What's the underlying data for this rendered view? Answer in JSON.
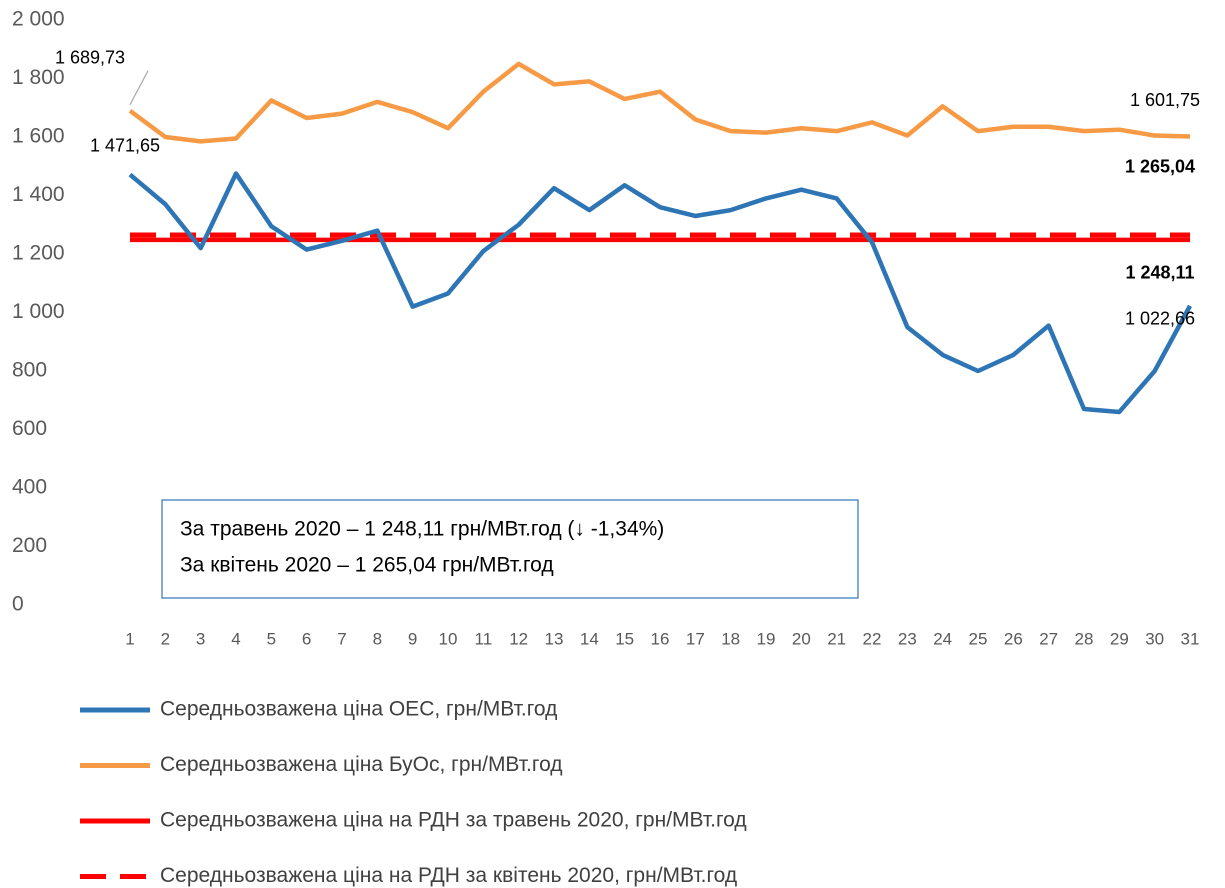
{
  "chart_data": {
    "type": "line",
    "categories": [
      "1",
      "2",
      "3",
      "4",
      "5",
      "6",
      "7",
      "8",
      "9",
      "10",
      "11",
      "12",
      "13",
      "14",
      "15",
      "16",
      "17",
      "18",
      "19",
      "20",
      "21",
      "22",
      "23",
      "24",
      "25",
      "26",
      "27",
      "28",
      "29",
      "30",
      "31"
    ],
    "ylim": [
      0,
      2000
    ],
    "yticks": [
      0,
      200,
      400,
      600,
      800,
      {
        "value": 1000,
        "label": "1 000"
      },
      {
        "value": 1200,
        "label": "1 200"
      },
      {
        "value": 1400,
        "label": "1 400"
      },
      {
        "value": 1600,
        "label": "1 600"
      },
      {
        "value": 1800,
        "label": "1 800"
      },
      {
        "value": 2000,
        "label": "2 000"
      }
    ],
    "grid": false,
    "legend": "bottom",
    "series": [
      {
        "name": "Середньозважена ціна ОЕС, грн/МВт.год",
        "color": "#2E75B6",
        "line_style": "solid",
        "values": [
          1471.65,
          1370,
          1220,
          1475,
          1295,
          1215,
          1245,
          1280,
          1020,
          1065,
          1210,
          1300,
          1425,
          1350,
          1435,
          1360,
          1330,
          1350,
          1390,
          1420,
          1390,
          1240,
          950,
          855,
          800,
          855,
          955,
          670,
          660,
          800,
          1022.66
        ],
        "value_labels": [
          "1 471,65",
          null,
          null,
          null,
          null,
          null,
          null,
          null,
          null,
          null,
          null,
          null,
          null,
          null,
          null,
          null,
          null,
          null,
          null,
          null,
          null,
          null,
          null,
          null,
          null,
          null,
          null,
          null,
          null,
          null,
          "1 022,66"
        ]
      },
      {
        "name": "Середньозважена ціна БуОс, грн/МВт.год",
        "color": "#F79A45",
        "line_style": "solid",
        "values": [
          1689.73,
          1600,
          1585,
          1595,
          1725,
          1665,
          1680,
          1720,
          1685,
          1630,
          1755,
          1850,
          1780,
          1790,
          1730,
          1755,
          1660,
          1620,
          1615,
          1630,
          1620,
          1650,
          1605,
          1705,
          1620,
          1635,
          1635,
          1620,
          1625,
          1605,
          1601.75
        ],
        "value_labels": [
          "1 689,73",
          null,
          null,
          null,
          null,
          null,
          null,
          null,
          null,
          null,
          null,
          null,
          null,
          null,
          null,
          null,
          null,
          null,
          null,
          null,
          null,
          null,
          null,
          null,
          null,
          null,
          null,
          null,
          null,
          null,
          "1 601,75"
        ]
      },
      {
        "name": "Середньозважена ціна на РДН за травень 2020, грн/МВт.год",
        "color": "#FF0000",
        "line_style": "solid",
        "values": [
          1248.11,
          1248.11,
          1248.11,
          1248.11,
          1248.11,
          1248.11,
          1248.11,
          1248.11,
          1248.11,
          1248.11,
          1248.11,
          1248.11,
          1248.11,
          1248.11,
          1248.11,
          1248.11,
          1248.11,
          1248.11,
          1248.11,
          1248.11,
          1248.11,
          1248.11,
          1248.11,
          1248.11,
          1248.11,
          1248.11,
          1248.11,
          1248.11,
          1248.11,
          1248.11,
          1248.11
        ],
        "value_labels": [
          null,
          null,
          null,
          null,
          null,
          null,
          null,
          null,
          null,
          null,
          null,
          null,
          null,
          null,
          null,
          null,
          null,
          null,
          null,
          null,
          null,
          null,
          null,
          null,
          null,
          null,
          null,
          null,
          null,
          null,
          "1 248,11"
        ]
      },
      {
        "name": "Середньозважена ціна на РДН за квітень 2020, грн/МВт.год",
        "color": "#FF0000",
        "line_style": "dashed",
        "values": [
          1265.04,
          1265.04,
          1265.04,
          1265.04,
          1265.04,
          1265.04,
          1265.04,
          1265.04,
          1265.04,
          1265.04,
          1265.04,
          1265.04,
          1265.04,
          1265.04,
          1265.04,
          1265.04,
          1265.04,
          1265.04,
          1265.04,
          1265.04,
          1265.04,
          1265.04,
          1265.04,
          1265.04,
          1265.04,
          1265.04,
          1265.04,
          1265.04,
          1265.04,
          1265.04,
          1265.04
        ],
        "value_labels": [
          null,
          null,
          null,
          null,
          null,
          null,
          null,
          null,
          null,
          null,
          null,
          null,
          null,
          null,
          null,
          null,
          null,
          null,
          null,
          null,
          null,
          null,
          null,
          null,
          null,
          null,
          null,
          null,
          null,
          null,
          "1 265,04"
        ]
      }
    ],
    "annotations": [
      "За травень 2020 – 1 248,11 грн/МВт.год (↓ -1,34%)",
      "За квітень 2020 – 1 265,04 грн/МВт.год"
    ]
  }
}
